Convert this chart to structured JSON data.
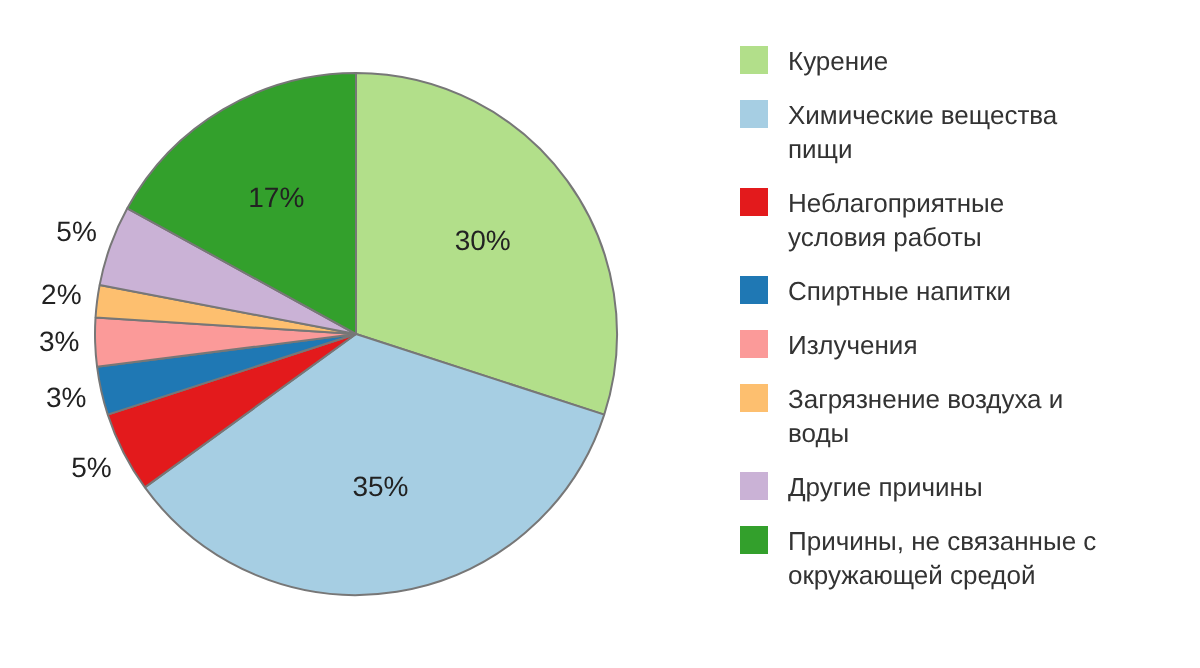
{
  "chart_data": {
    "type": "pie",
    "categories": [
      "Курение",
      "Химические вещества пищи",
      "Неблагоприятные условия работы",
      "Спиртные напитки",
      "Излучения",
      "Загрязнение воздуха и воды",
      "Другие причины",
      "Причины, не связанные с окружающей средой"
    ],
    "values": [
      30,
      35,
      5,
      3,
      3,
      2,
      5,
      17
    ],
    "colors": [
      "#b2df8a",
      "#a6cee3",
      "#e31a1c",
      "#1f78b4",
      "#fb9a99",
      "#fdbf6f",
      "#cab2d6",
      "#33a02c"
    ],
    "value_labels": [
      "30%",
      "35%",
      "5%",
      "3%",
      "3%",
      "2%",
      "5%",
      "17%"
    ],
    "legend": "right"
  }
}
